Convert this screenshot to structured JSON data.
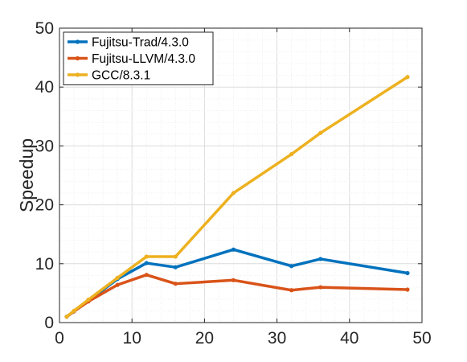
{
  "chart_data": {
    "type": "line",
    "title": "",
    "xlabel": "",
    "ylabel": "Speedup",
    "xlim": [
      0,
      50
    ],
    "ylim": [
      0,
      50
    ],
    "xticks": [
      0,
      10,
      20,
      30,
      40,
      50
    ],
    "yticks": [
      0,
      10,
      20,
      30,
      40,
      50
    ],
    "grid": "on (major and minor)",
    "legend_position": "top-left",
    "series": [
      {
        "name": "Fujitsu-Trad/4.3.0",
        "color": "#0072BD",
        "x": [
          1,
          2,
          4,
          8,
          12,
          16,
          24,
          32,
          36,
          48
        ],
        "y": [
          1.0,
          1.9,
          3.7,
          7.4,
          10.1,
          9.4,
          12.4,
          9.6,
          10.8,
          8.4
        ]
      },
      {
        "name": "Fujitsu-LLVM/4.3.0",
        "color": "#D95319",
        "x": [
          1,
          2,
          4,
          8,
          12,
          16,
          24,
          32,
          36,
          48
        ],
        "y": [
          1.0,
          1.9,
          3.6,
          6.4,
          8.1,
          6.6,
          7.2,
          5.5,
          6.0,
          5.6
        ]
      },
      {
        "name": "GCC/8.3.1",
        "color": "#EDB120",
        "x": [
          1,
          2,
          4,
          8,
          12,
          16,
          24,
          32,
          36,
          48
        ],
        "y": [
          1.0,
          2.0,
          3.9,
          7.6,
          11.2,
          11.2,
          22.0,
          28.6,
          32.2,
          41.7
        ]
      }
    ]
  }
}
